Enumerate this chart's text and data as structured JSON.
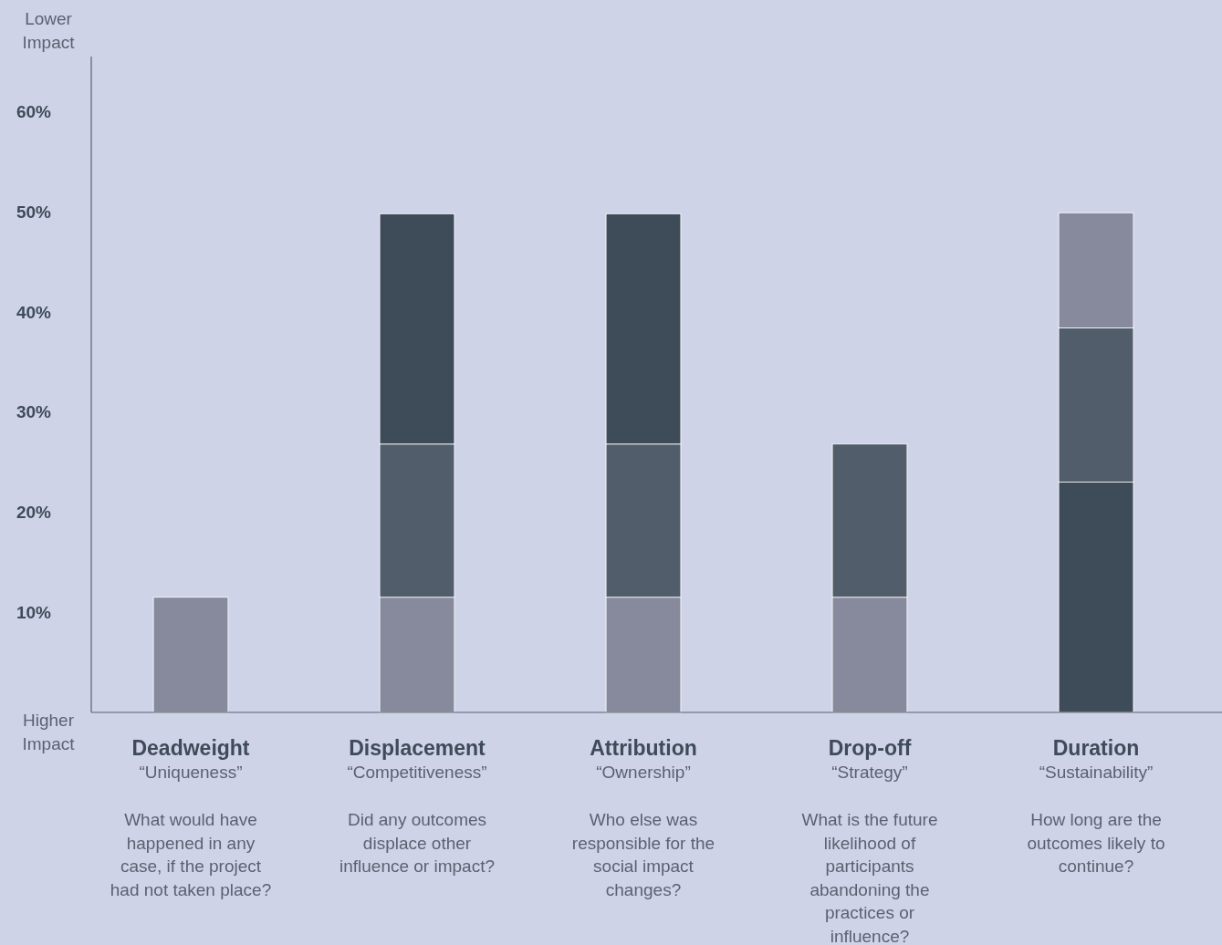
{
  "chart_data": {
    "type": "bar",
    "stacked": true,
    "categories": [
      "Deadweight",
      "Displacement",
      "Attribution",
      "Drop-off",
      "Duration"
    ],
    "series": [
      {
        "values": [
          11.5,
          11.5,
          11.5,
          11.5,
          23
        ],
        "colors": [
          "#878a9c",
          "#878a9c",
          "#878a9c",
          "#878a9c",
          "#3e4b58"
        ]
      },
      {
        "values": [
          null,
          15.3,
          15.3,
          15.3,
          15.4
        ],
        "color": "#515d6b"
      },
      {
        "values": [
          null,
          23,
          23,
          null,
          11.5
        ],
        "colors": [
          null,
          "#3e4b58",
          "#3e4b58",
          null,
          "#878a9c"
        ]
      }
    ],
    "ylim": [
      0,
      65.5
    ],
    "yticks": [
      {
        "value": 0,
        "label": null
      },
      {
        "value": 10,
        "label": "10%"
      },
      {
        "value": 20,
        "label": "20%"
      },
      {
        "value": 30,
        "label": "30%"
      },
      {
        "value": 40,
        "label": "40%"
      },
      {
        "value": 50,
        "label": "50%"
      },
      {
        "value": 60,
        "label": "60%"
      }
    ],
    "annotations": [
      "Lower Impact",
      "Higher Impact",
      "“Uniqueness”",
      "What would have happened in any case, if the project had not taken place?",
      "“Competitiveness”",
      "Did any outcomes displace other influence or impact?",
      "“Ownership”",
      "Who else was responsible for the social impact changes?",
      "“Strategy”",
      "What is the future likelihood of participants abandoning the practices or influence?",
      "“Sustainability”",
      "How long are the outcomes likely to continue?"
    ]
  }
}
